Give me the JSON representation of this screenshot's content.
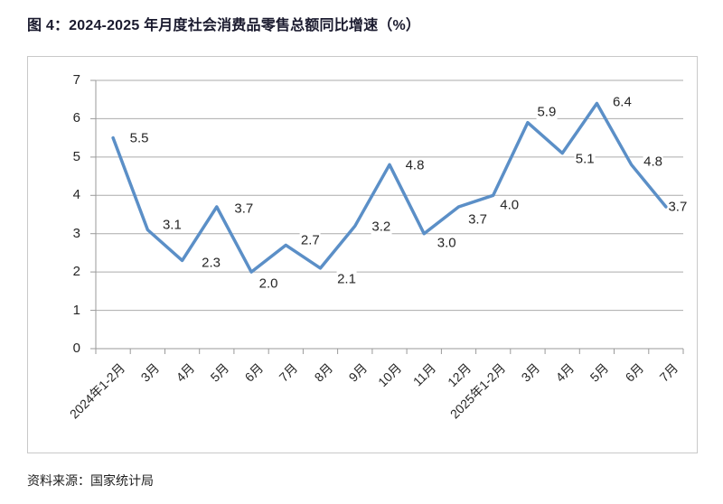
{
  "title": "图 4：2024-2025 年月度社会消费品零售总额同比增速（%）",
  "source": "资料来源：国家统计局",
  "colors": {
    "line": "#5b8fc7",
    "grid": "#ababab",
    "axis": "#9a9a9a",
    "frame_border": "#c9c9c9",
    "title_text": "#1a1a2e",
    "label_text": "#262626"
  },
  "chart_data": {
    "type": "line",
    "title": "图 4：2024-2025 年月度社会消费品零售总额同比增速（%）",
    "categories": [
      "2024年1-2月",
      "3月",
      "4月",
      "5月",
      "6月",
      "7月",
      "8月",
      "9月",
      "10月",
      "11月",
      "12月",
      "2025年1-2月",
      "3月",
      "4月",
      "5月",
      "6月",
      "7月"
    ],
    "values": [
      5.5,
      3.1,
      2.3,
      3.7,
      2.0,
      2.7,
      2.1,
      3.2,
      4.8,
      3.0,
      3.7,
      4.0,
      5.9,
      5.1,
      6.4,
      4.8,
      3.7
    ],
    "xlabel": "",
    "ylabel": "",
    "ylim": [
      0,
      7
    ],
    "yticks": [
      0,
      1,
      2,
      3,
      4,
      5,
      6,
      7
    ],
    "grid": true,
    "legend": "none",
    "data_labels": true,
    "x_label_rotation_deg": -45
  }
}
